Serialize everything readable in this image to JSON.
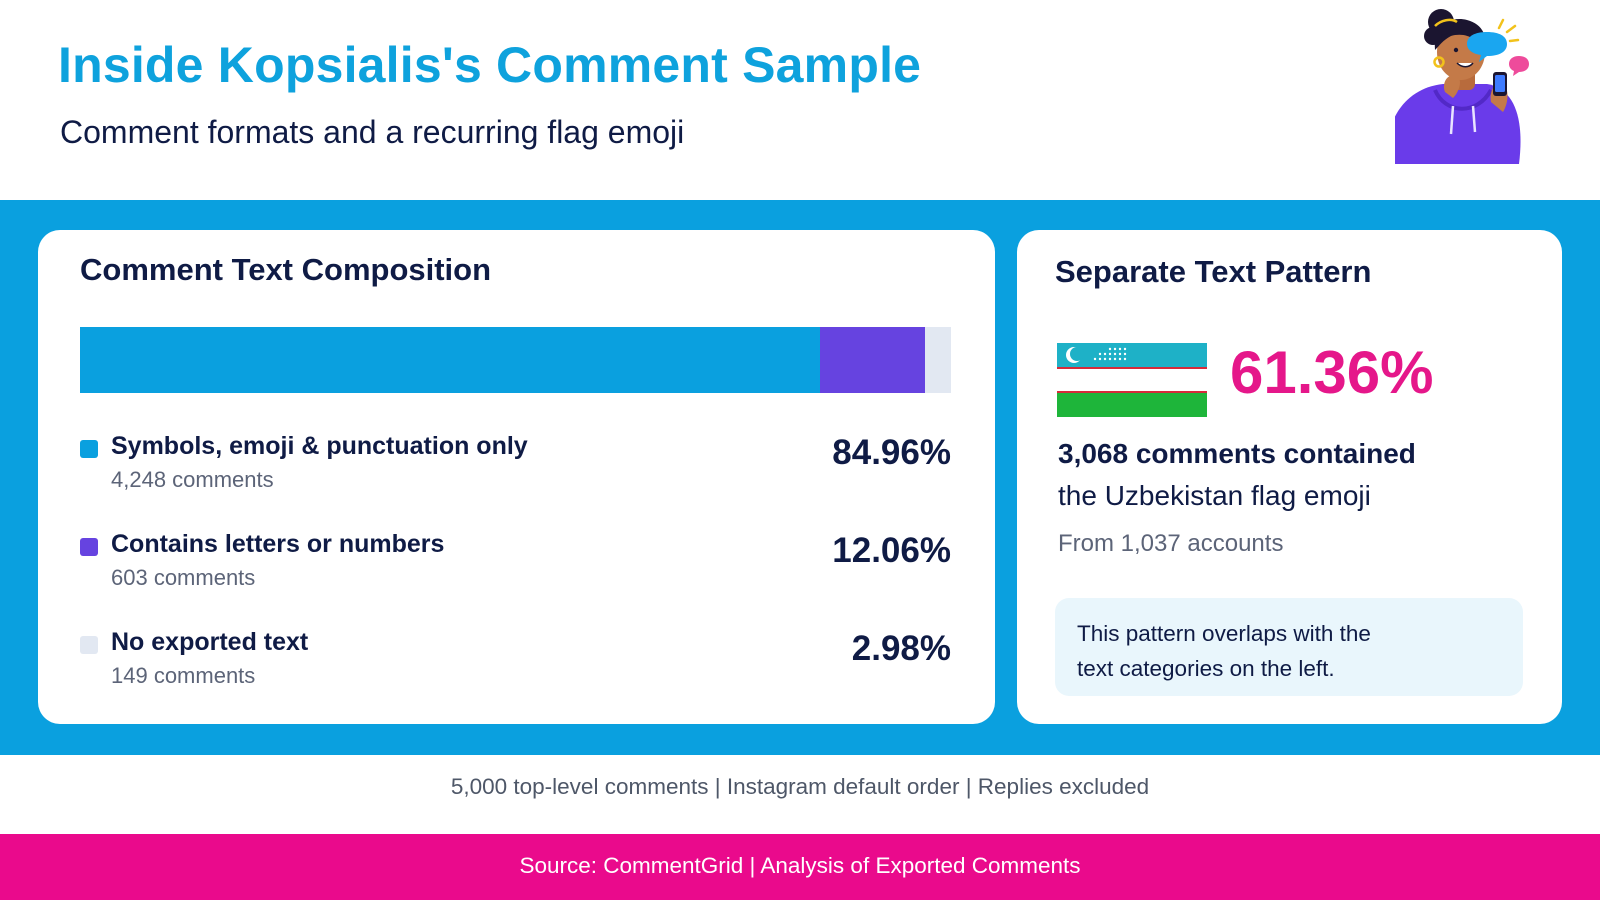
{
  "header": {
    "title": "Inside Kopsialis's Comment Sample",
    "subtitle": "Comment formats and a recurring flag emoji"
  },
  "chart_data": [
    {
      "type": "bar",
      "title": "Comment Text Composition",
      "stacked": true,
      "orientation": "horizontal",
      "unit": "%",
      "total": 100,
      "series": [
        {
          "name": "Symbols, emoji & punctuation only",
          "value": 84.96,
          "value_label": "84.96%",
          "count_label": "4,248 comments",
          "color": "#0aa0df"
        },
        {
          "name": "Contains letters or numbers",
          "value": 12.06,
          "value_label": "12.06%",
          "count_label": "603 comments",
          "color": "#6643e0"
        },
        {
          "name": "No exported text",
          "value": 2.98,
          "value_label": "2.98%",
          "count_label": "149 comments",
          "color": "#e2e8f2"
        }
      ]
    }
  ],
  "pattern": {
    "title": "Separate Text Pattern",
    "percent": 61.36,
    "percent_label": "61.36%",
    "stat_bold": "3,068 comments contained",
    "stat_normal": "the Uzbekistan flag emoji",
    "stat_sub": "From 1,037 accounts",
    "note": "This pattern overlaps with the text categories on the left.",
    "flag_icon": "uzbekistan-flag-icon",
    "colors": {
      "accent": "#e5178a",
      "flag_blue": "#1eb1c7",
      "flag_red": "#d62b3a",
      "flag_green": "#1eb53a"
    }
  },
  "footer": {
    "footnote": "5,000 top-level comments | Instagram default order | Replies excluded",
    "source": "Source: CommentGrid | Analysis of Exported Comments"
  },
  "illustration": {
    "icon": "person-with-phone-chat-illustration"
  },
  "colors": {
    "brand_blue": "#0aa0df",
    "brand_pink": "#ea0a8c",
    "text_dark": "#0f1b45"
  }
}
